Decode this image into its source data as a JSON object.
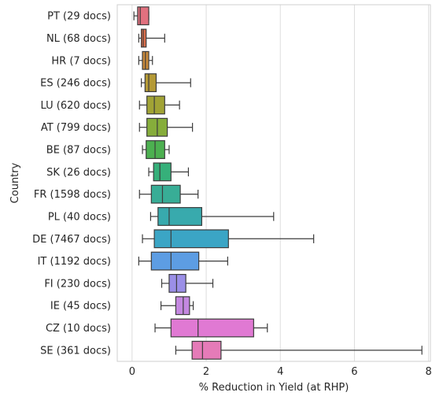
{
  "chart_data": {
    "type": "box",
    "orientation": "horizontal",
    "title": "",
    "xlabel": "% Reduction in Yield (at RHP)",
    "ylabel": "Country",
    "xlim": [
      -0.4,
      8.05
    ],
    "xticks": [
      0,
      2,
      4,
      6,
      8
    ],
    "grid": "vertical",
    "legend": "none",
    "boxes": [
      {
        "label": "PT (29 docs)",
        "whisker_low": 0.05,
        "q1": 0.15,
        "median": 0.22,
        "q3": 0.45,
        "whisker_high": 0.45,
        "color": "#e1717f"
      },
      {
        "label": "NL (68 docs)",
        "whisker_low": 0.18,
        "q1": 0.25,
        "median": 0.3,
        "q3": 0.38,
        "whisker_high": 0.88,
        "color": "#dd6f4b"
      },
      {
        "label": "HR (7 docs)",
        "whisker_low": 0.18,
        "q1": 0.28,
        "median": 0.36,
        "q3": 0.45,
        "whisker_high": 0.55,
        "color": "#c98a3b"
      },
      {
        "label": "ES (246 docs)",
        "whisker_low": 0.25,
        "q1": 0.35,
        "median": 0.45,
        "q3": 0.65,
        "whisker_high": 1.58,
        "color": "#b59a36"
      },
      {
        "label": "LU (620 docs)",
        "whisker_low": 0.2,
        "q1": 0.4,
        "median": 0.6,
        "q3": 0.88,
        "whisker_high": 1.28,
        "color": "#a1a335"
      },
      {
        "label": "AT (799 docs)",
        "whisker_low": 0.2,
        "q1": 0.4,
        "median": 0.68,
        "q3": 0.95,
        "whisker_high": 1.63,
        "color": "#86ad3b"
      },
      {
        "label": "BE (87 docs)",
        "whisker_low": 0.28,
        "q1": 0.38,
        "median": 0.62,
        "q3": 0.88,
        "whisker_high": 1.0,
        "color": "#4cb050"
      },
      {
        "label": "SK (26 docs)",
        "whisker_low": 0.45,
        "q1": 0.58,
        "median": 0.75,
        "q3": 1.05,
        "whisker_high": 1.52,
        "color": "#36b07a"
      },
      {
        "label": "FR (1598 docs)",
        "whisker_low": 0.2,
        "q1": 0.52,
        "median": 0.82,
        "q3": 1.3,
        "whisker_high": 1.78,
        "color": "#38ad96"
      },
      {
        "label": "PL (40 docs)",
        "whisker_low": 0.5,
        "q1": 0.7,
        "median": 1.0,
        "q3": 1.88,
        "whisker_high": 3.82,
        "color": "#38aaad"
      },
      {
        "label": "DE (7467 docs)",
        "whisker_low": 0.28,
        "q1": 0.6,
        "median": 1.05,
        "q3": 2.6,
        "whisker_high": 4.9,
        "color": "#3ba5c5"
      },
      {
        "label": "IT (1192 docs)",
        "whisker_low": 0.18,
        "q1": 0.52,
        "median": 1.05,
        "q3": 1.8,
        "whisker_high": 2.58,
        "color": "#5d9de3"
      },
      {
        "label": "FI (230 docs)",
        "whisker_low": 0.8,
        "q1": 1.0,
        "median": 1.2,
        "q3": 1.45,
        "whisker_high": 2.18,
        "color": "#9b8fe7"
      },
      {
        "label": "IE (45 docs)",
        "whisker_low": 0.78,
        "q1": 1.18,
        "median": 1.38,
        "q3": 1.55,
        "whisker_high": 1.65,
        "color": "#c488e0"
      },
      {
        "label": "CZ (10 docs)",
        "whisker_low": 0.62,
        "q1": 1.05,
        "median": 1.78,
        "q3": 3.28,
        "whisker_high": 3.65,
        "color": "#e079d3"
      },
      {
        "label": "SE (361 docs)",
        "whisker_low": 1.18,
        "q1": 1.62,
        "median": 1.9,
        "q3": 2.4,
        "whisker_high": 7.82,
        "color": "#e57bb8"
      }
    ]
  }
}
